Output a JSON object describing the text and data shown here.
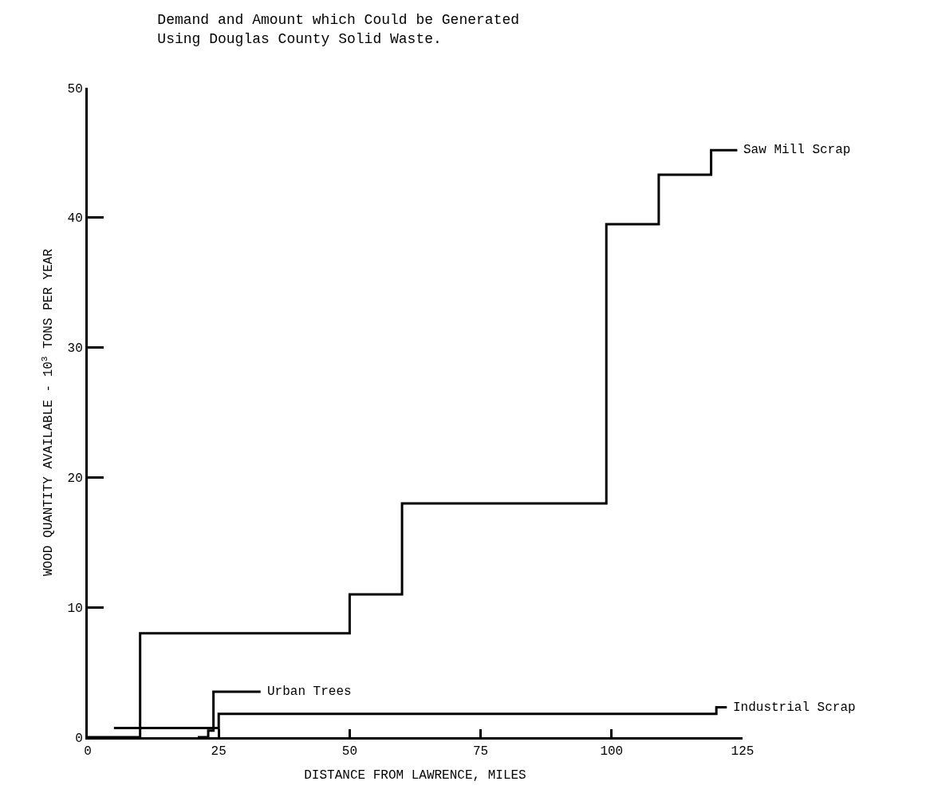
{
  "chart_data": {
    "type": "step",
    "title": "Demand and Amount which Could be Generated\nUsing Douglas County Solid Waste.",
    "xlabel": "DISTANCE FROM LAWRENCE, MILES",
    "ylabel": "WOOD QUANTITY AVAILABLE - 10$^{3}$ TONS PER YEAR",
    "xlim": [
      0,
      125
    ],
    "xticks": [
      0,
      25,
      50,
      75,
      100,
      125
    ],
    "ylim": [
      0,
      50
    ],
    "yticks": [
      0,
      10,
      20,
      30,
      40,
      50
    ],
    "legend": false,
    "line_style": "solid",
    "marker": "none",
    "series": [
      {
        "name": "Saw Mill Scrap",
        "color": "#000000",
        "x": [
          0,
          10,
          50,
          60,
          99,
          109,
          119,
          124
        ],
        "values": [
          0,
          8,
          11,
          18,
          39.5,
          43.3,
          45.2,
          45.2
        ]
      },
      {
        "name": "Urban Trees",
        "color": "#000000",
        "x": [
          21,
          23,
          24,
          33
        ],
        "values": [
          0,
          0.5,
          3.5,
          3.5
        ]
      },
      {
        "name": "Industrial Scrap",
        "color": "#000000",
        "x": [
          5,
          25,
          120,
          122
        ],
        "values": [
          0.7,
          1.8,
          2.3,
          2.3
        ]
      }
    ]
  }
}
